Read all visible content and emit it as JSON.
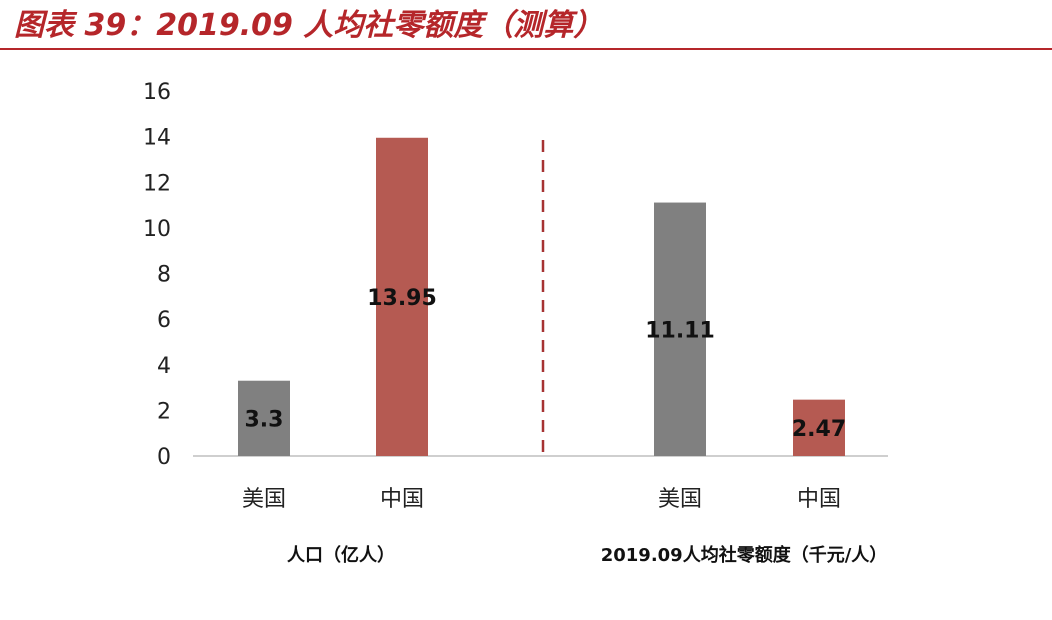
{
  "title": "图表 39：2019.09 人均社零额度（测算）",
  "colors": {
    "accent": "#b5262a",
    "us_bar": "#808080",
    "cn_bar": "#b55a52",
    "divider": "#a63232"
  },
  "chart_data": {
    "type": "bar",
    "title": "",
    "ylim": [
      0,
      16
    ],
    "yticks": [
      0,
      2,
      4,
      6,
      8,
      10,
      12,
      14,
      16
    ],
    "grid": false,
    "groups": [
      {
        "label": "人口（亿人）",
        "categories": [
          "美国",
          "中国"
        ],
        "values": [
          3.3,
          13.95
        ],
        "data_labels": [
          "3.3",
          "13.95"
        ]
      },
      {
        "label": "2019.09人均社零额度（千元/人）",
        "categories": [
          "美国",
          "中国"
        ],
        "values": [
          11.11,
          2.47
        ],
        "data_labels": [
          "11.11",
          "2.47"
        ]
      }
    ]
  }
}
